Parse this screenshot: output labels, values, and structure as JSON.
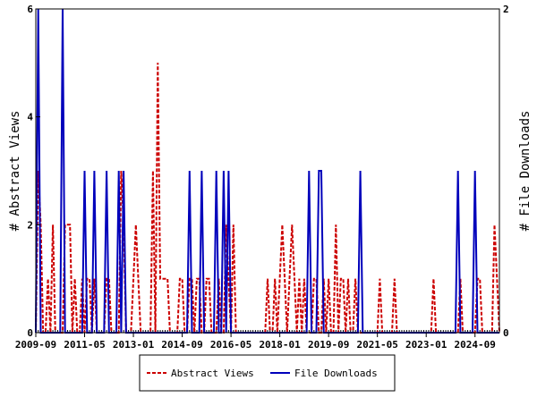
{
  "chart_data": {
    "type": "line",
    "title": "",
    "ylabel": "# Abstract Views",
    "y2label": "# File Downloads",
    "ylim": [
      0,
      6
    ],
    "y2lim": [
      0,
      2
    ],
    "yticks": [
      "0",
      "2",
      "4",
      "6"
    ],
    "y2ticks": [
      "0",
      "2"
    ],
    "xticks": [
      "2009-09",
      "2011-05",
      "2013-01",
      "2014-09",
      "2016-05",
      "2018-01",
      "2019-09",
      "2021-05",
      "2023-01",
      "2024-09"
    ],
    "legend": "bottom",
    "grid": false,
    "x": [
      "2009-09",
      "2009-10",
      "2009-11",
      "2009-12",
      "2010-01",
      "2010-02",
      "2010-03",
      "2010-04",
      "2010-05",
      "2010-06",
      "2010-07",
      "2010-08",
      "2010-09",
      "2010-10",
      "2010-11",
      "2010-12",
      "2011-01",
      "2011-02",
      "2011-03",
      "2011-04",
      "2011-05",
      "2011-06",
      "2011-07",
      "2011-08",
      "2011-09",
      "2011-10",
      "2011-11",
      "2011-12",
      "2012-01",
      "2012-02",
      "2012-03",
      "2012-04",
      "2012-05",
      "2012-06",
      "2012-07",
      "2012-08",
      "2012-09",
      "2012-10",
      "2012-11",
      "2012-12",
      "2013-01",
      "2013-02",
      "2013-03",
      "2013-04",
      "2013-05",
      "2013-06",
      "2013-07",
      "2013-08",
      "2013-09",
      "2013-10",
      "2013-11",
      "2013-12",
      "2014-01",
      "2014-02",
      "2014-03",
      "2014-04",
      "2014-05",
      "2014-06",
      "2014-07",
      "2014-08",
      "2014-09",
      "2014-10",
      "2014-11",
      "2014-12",
      "2015-01",
      "2015-02",
      "2015-03",
      "2015-04",
      "2015-05",
      "2015-06",
      "2015-07",
      "2015-08",
      "2015-09",
      "2015-10",
      "2015-11",
      "2015-12",
      "2016-01",
      "2016-02",
      "2016-03",
      "2016-04",
      "2016-05",
      "2016-06",
      "2016-07",
      "2016-08",
      "2016-09",
      "2016-10",
      "2016-11",
      "2016-12",
      "2017-01",
      "2017-02",
      "2017-03",
      "2017-04",
      "2017-05",
      "2017-06",
      "2017-07",
      "2017-08",
      "2017-09",
      "2017-10",
      "2017-11",
      "2017-12",
      "2018-01",
      "2018-02",
      "2018-03",
      "2018-04",
      "2018-05",
      "2018-06",
      "2018-07",
      "2018-08",
      "2018-09",
      "2018-10",
      "2018-11",
      "2018-12",
      "2019-01",
      "2019-02",
      "2019-03",
      "2019-04",
      "2019-05",
      "2019-06",
      "2019-07",
      "2019-08",
      "2019-09",
      "2019-10",
      "2019-11",
      "2019-12",
      "2020-01",
      "2020-02",
      "2020-03",
      "2020-04",
      "2020-05",
      "2020-06",
      "2020-07",
      "2020-08",
      "2020-09",
      "2020-10",
      "2020-11",
      "2020-12",
      "2021-01",
      "2021-02",
      "2021-03",
      "2021-04",
      "2021-05",
      "2021-06",
      "2021-07",
      "2021-08",
      "2021-09",
      "2021-10",
      "2021-11",
      "2021-12",
      "2022-01",
      "2022-02",
      "2022-03",
      "2022-04",
      "2022-05",
      "2022-06",
      "2022-07",
      "2022-08",
      "2022-09",
      "2022-10",
      "2022-11",
      "2022-12",
      "2023-01",
      "2023-02",
      "2023-03",
      "2023-04",
      "2023-05",
      "2023-06",
      "2023-07",
      "2023-08",
      "2023-09",
      "2023-10",
      "2023-11",
      "2023-12",
      "2024-01",
      "2024-02",
      "2024-03",
      "2024-04",
      "2024-05",
      "2024-06",
      "2024-07",
      "2024-08",
      "2024-09",
      "2024-10",
      "2024-11",
      "2024-12",
      "2025-01",
      "2025-02",
      "2025-03",
      "2025-04",
      "2025-05",
      "2025-06",
      "2025-07"
    ],
    "series": [
      {
        "name": "Abstract Views",
        "axis": "left",
        "color": "#cc0000",
        "style": "dashed",
        "values": [
          0,
          3,
          2,
          0,
          0,
          1,
          0,
          2,
          0,
          0,
          0,
          0,
          2,
          2,
          2,
          0,
          1,
          0,
          0,
          1,
          0,
          1,
          1,
          0,
          1,
          0,
          0,
          0,
          0,
          1,
          1,
          0,
          0,
          0,
          0,
          3,
          2,
          0,
          0,
          0,
          1,
          2,
          1,
          0,
          0,
          0,
          0,
          0,
          3,
          0,
          5,
          1,
          1,
          1,
          1,
          0,
          0,
          0,
          0,
          1,
          1,
          0,
          0,
          1,
          1,
          0,
          1,
          1,
          0,
          0,
          1,
          1,
          0,
          0,
          0,
          1,
          0,
          0,
          2,
          1,
          0,
          2,
          0,
          0,
          0,
          0,
          0,
          0,
          0,
          0,
          0,
          0,
          0,
          0,
          0,
          1,
          0,
          0,
          1,
          0,
          1,
          2,
          1,
          0,
          1,
          2,
          1,
          0,
          1,
          0,
          1,
          0,
          0,
          0,
          1,
          1,
          0,
          0,
          1,
          0,
          1,
          0,
          0,
          2,
          0,
          1,
          1,
          0,
          1,
          0,
          0,
          1,
          0,
          0,
          0,
          0,
          0,
          0,
          0,
          0,
          0,
          1,
          0,
          0,
          0,
          0,
          0,
          1,
          0,
          0,
          0,
          0,
          0,
          0,
          0,
          0,
          0,
          0,
          0,
          0,
          0,
          0,
          0,
          1,
          0,
          0,
          0,
          0,
          0,
          0,
          0,
          0,
          0,
          0,
          1,
          0,
          0,
          0,
          0,
          0,
          0,
          1,
          1,
          0,
          0,
          0,
          0,
          0,
          2,
          1,
          0
        ]
      },
      {
        "name": "File Downloads",
        "axis": "right",
        "color": "#0000bb",
        "style": "solid",
        "values": [
          0,
          2,
          0,
          0,
          0,
          0,
          0,
          0,
          0,
          0,
          0,
          2,
          0,
          0,
          0,
          0,
          0,
          0,
          0,
          0,
          1,
          0,
          0,
          0,
          1,
          0,
          0,
          0,
          0,
          1,
          0,
          0,
          0,
          0,
          1,
          0,
          1,
          0,
          0,
          0,
          0,
          0,
          0,
          0,
          0,
          0,
          0,
          0,
          0,
          0,
          0,
          0,
          0,
          0,
          0,
          0,
          0,
          0,
          0,
          0,
          0,
          0,
          0,
          1,
          0,
          0,
          0,
          0,
          1,
          0,
          0,
          0,
          0,
          0,
          1,
          0,
          0,
          1,
          0,
          1,
          0,
          0,
          0,
          0,
          0,
          0,
          0,
          0,
          0,
          0,
          0,
          0,
          0,
          0,
          0,
          0,
          0,
          0,
          0,
          0,
          0,
          0,
          0,
          0,
          0,
          0,
          0,
          0,
          0,
          0,
          0,
          0,
          1,
          0,
          0,
          0,
          1,
          1,
          0,
          0,
          0,
          0,
          0,
          0,
          0,
          0,
          0,
          0,
          0,
          0,
          0,
          0,
          0,
          1,
          0,
          0,
          0,
          0,
          0,
          0,
          0,
          0,
          0,
          0,
          0,
          0,
          0,
          0,
          0,
          0,
          0,
          0,
          0,
          0,
          0,
          0,
          0,
          0,
          0,
          0,
          0,
          0,
          0,
          0,
          0,
          0,
          0,
          0,
          0,
          0,
          0,
          0,
          0,
          1,
          0,
          0,
          0,
          0,
          0,
          0,
          1,
          0,
          0,
          0,
          0,
          0,
          0,
          0,
          0,
          0,
          0
        ]
      }
    ]
  }
}
